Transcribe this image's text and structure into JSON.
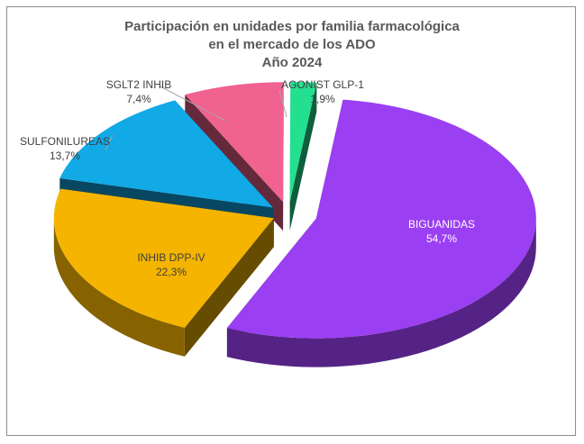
{
  "chart_data": {
    "type": "pie",
    "title": [
      "Participación en unidades por familia farmacológica",
      "en el mercado de los ADO",
      "Año 2024"
    ],
    "slices": [
      {
        "name": "BIGUANIDAS",
        "value": 54.7,
        "label": "54,7%",
        "color": "#9b3ff2"
      },
      {
        "name": "INHIB DPP-IV",
        "value": 22.3,
        "label": "22,3%",
        "color": "#f4b400"
      },
      {
        "name": "SULFONILUREAS",
        "value": 13.7,
        "label": "13,7%",
        "color": "#11a9e6"
      },
      {
        "name": "SGLT2 INHIB",
        "value": 7.4,
        "label": "7,4%",
        "color": "#f06290"
      },
      {
        "name": "AGONIST GLP-1",
        "value": 1.9,
        "label": "1,9%",
        "color": "#22e08f"
      }
    ]
  }
}
